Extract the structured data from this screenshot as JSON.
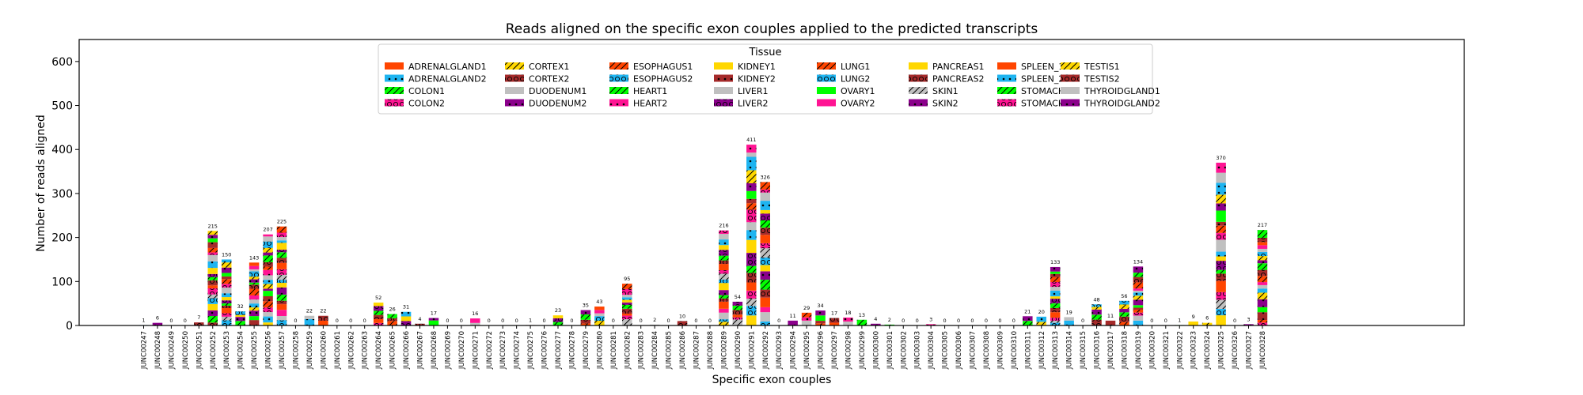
{
  "chart_data": {
    "type": "bar",
    "stacked": true,
    "title": "Reads aligned on the specific exon couples applied to the predicted transcripts",
    "xlabel": "Specific exon couples",
    "ylabel": "Number of reads aligned",
    "ylim": [
      0,
      650
    ],
    "yticks": [
      0,
      100,
      200,
      300,
      400,
      500,
      600
    ],
    "grid": false,
    "legend": {
      "title": "Tissue",
      "placement": "top-center",
      "entries": [
        {
          "name": "ADRENALGLAND1",
          "color": "#FF4500",
          "hatch": "none"
        },
        {
          "name": "ADRENALGLAND2",
          "color": "#1EB4F0",
          "hatch": "dot"
        },
        {
          "name": "COLON1",
          "color": "#00FF00",
          "hatch": "slash"
        },
        {
          "name": "COLON2",
          "color": "#FF1493",
          "hatch": "circle"
        },
        {
          "name": "CORTEX1",
          "color": "#FFD700",
          "hatch": "slash"
        },
        {
          "name": "CORTEX2",
          "color": "#A52A2A",
          "hatch": "circle"
        },
        {
          "name": "DUODENUM1",
          "color": "#C0C0C0",
          "hatch": "none"
        },
        {
          "name": "DUODENUM2",
          "color": "#8B008B",
          "hatch": "dot"
        },
        {
          "name": "ESOPHAGUS1",
          "color": "#FF4500",
          "hatch": "slash"
        },
        {
          "name": "ESOPHAGUS2",
          "color": "#1EB4F0",
          "hatch": "circle"
        },
        {
          "name": "HEART1",
          "color": "#00FF00",
          "hatch": "slash"
        },
        {
          "name": "HEART2",
          "color": "#FF1493",
          "hatch": "dot"
        },
        {
          "name": "KIDNEY1",
          "color": "#FFD700",
          "hatch": "none"
        },
        {
          "name": "KIDNEY2",
          "color": "#A52A2A",
          "hatch": "dot"
        },
        {
          "name": "LIVER1",
          "color": "#C0C0C0",
          "hatch": "none"
        },
        {
          "name": "LIVER2",
          "color": "#8B008B",
          "hatch": "circle"
        },
        {
          "name": "LUNG1",
          "color": "#FF4500",
          "hatch": "slash"
        },
        {
          "name": "LUNG2",
          "color": "#1EB4F0",
          "hatch": "circle"
        },
        {
          "name": "OVARY1",
          "color": "#00FF00",
          "hatch": "none"
        },
        {
          "name": "OVARY2",
          "color": "#FF1493",
          "hatch": "none"
        },
        {
          "name": "PANCREAS1",
          "color": "#FFD700",
          "hatch": "none"
        },
        {
          "name": "PANCREAS2",
          "color": "#A52A2A",
          "hatch": "circle"
        },
        {
          "name": "SKIN1",
          "color": "#C0C0C0",
          "hatch": "slash"
        },
        {
          "name": "SKIN2",
          "color": "#8B008B",
          "hatch": "dot"
        },
        {
          "name": "SPLEEN_1",
          "color": "#FF4500",
          "hatch": "none"
        },
        {
          "name": "SPLEEN_2",
          "color": "#1EB4F0",
          "hatch": "dot"
        },
        {
          "name": "STOMACH1",
          "color": "#00FF00",
          "hatch": "slash"
        },
        {
          "name": "STOMACH2",
          "color": "#FF1493",
          "hatch": "circle"
        },
        {
          "name": "TESTIS1",
          "color": "#FFD700",
          "hatch": "slash"
        },
        {
          "name": "TESTIS2",
          "color": "#A52A2A",
          "hatch": "circle"
        },
        {
          "name": "THYROIDGLAND1",
          "color": "#C0C0C0",
          "hatch": "none"
        },
        {
          "name": "THYROIDGLAND2",
          "color": "#8B008B",
          "hatch": "dot"
        }
      ]
    },
    "categories": [
      "JUNC00247",
      "JUNC00248",
      "JUNC00249",
      "JUNC00250",
      "JUNC00251",
      "JUNC00252",
      "JUNC00253",
      "JUNC00254",
      "JUNC00255",
      "JUNC00256",
      "JUNC00257",
      "JUNC00258",
      "JUNC00259",
      "JUNC00260",
      "JUNC00261",
      "JUNC00262",
      "JUNC00263",
      "JUNC00264",
      "JUNC00265",
      "JUNC00266",
      "JUNC00267",
      "JUNC00268",
      "JUNC00269",
      "JUNC00270",
      "JUNC00271",
      "JUNC00272",
      "JUNC00273",
      "JUNC00274",
      "JUNC00275",
      "JUNC00276",
      "JUNC00277",
      "JUNC00278",
      "JUNC00279",
      "JUNC00280",
      "JUNC00281",
      "JUNC00282",
      "JUNC00283",
      "JUNC00284",
      "JUNC00285",
      "JUNC00286",
      "JUNC00287",
      "JUNC00288",
      "JUNC00289",
      "JUNC00290",
      "JUNC00291",
      "JUNC00292",
      "JUNC00293",
      "JUNC00294",
      "JUNC00295",
      "JUNC00296",
      "JUNC00297",
      "JUNC00298",
      "JUNC00299",
      "JUNC00300",
      "JUNC00301",
      "JUNC00302",
      "JUNC00303",
      "JUNC00304",
      "JUNC00305",
      "JUNC00306",
      "JUNC00307",
      "JUNC00308",
      "JUNC00309",
      "JUNC00310",
      "JUNC00311",
      "JUNC00312",
      "JUNC00313",
      "JUNC00314",
      "JUNC00315",
      "JUNC00316",
      "JUNC00317",
      "JUNC00318",
      "JUNC00319",
      "JUNC00320",
      "JUNC00321",
      "JUNC00322",
      "JUNC00323",
      "JUNC00324",
      "JUNC00325",
      "JUNC00326",
      "JUNC00327",
      "JUNC00328"
    ],
    "totals": [
      1,
      6,
      0,
      0,
      7,
      215,
      150,
      32,
      143,
      207,
      225,
      0,
      22,
      22,
      0,
      0,
      0,
      52,
      26,
      31,
      4,
      17,
      0,
      0,
      16,
      0,
      0,
      0,
      1,
      0,
      23,
      0,
      35,
      43,
      0,
      95,
      0,
      2,
      0,
      10,
      0,
      0,
      216,
      54,
      411,
      326,
      0,
      11,
      29,
      34,
      17,
      18,
      13,
      4,
      2,
      0,
      0,
      3,
      0,
      0,
      0,
      0,
      0,
      0,
      21,
      20,
      133,
      19,
      0,
      48,
      11,
      56,
      134,
      0,
      0,
      1,
      9,
      6,
      370,
      0,
      3,
      217
    ],
    "total_labels": [
      "1",
      "6",
      "0",
      "0",
      "7",
      "215",
      "150",
      "32",
      "143",
      "207",
      "225",
      "0",
      "22",
      "22",
      "0",
      "0",
      "0",
      "52",
      "26",
      "31",
      "4",
      "17",
      "0",
      "0",
      "16",
      "0",
      "0",
      "0",
      "1",
      "0",
      "23",
      "0",
      "35",
      "43",
      "0",
      "95",
      "0",
      "2",
      "0",
      "10",
      "0",
      "0",
      "216",
      "54",
      "411",
      "326",
      "0",
      "11",
      "29",
      "34",
      "17",
      "18",
      "13",
      "4",
      "2",
      "0",
      "0",
      "3",
      "0",
      "0",
      "0",
      "0",
      "0",
      "0",
      "21",
      "20",
      "133",
      "19",
      "0",
      "48",
      "11",
      "56",
      "134",
      "0",
      "0",
      "1",
      "9",
      "6",
      "370",
      "0",
      "3",
      "217"
    ]
  }
}
